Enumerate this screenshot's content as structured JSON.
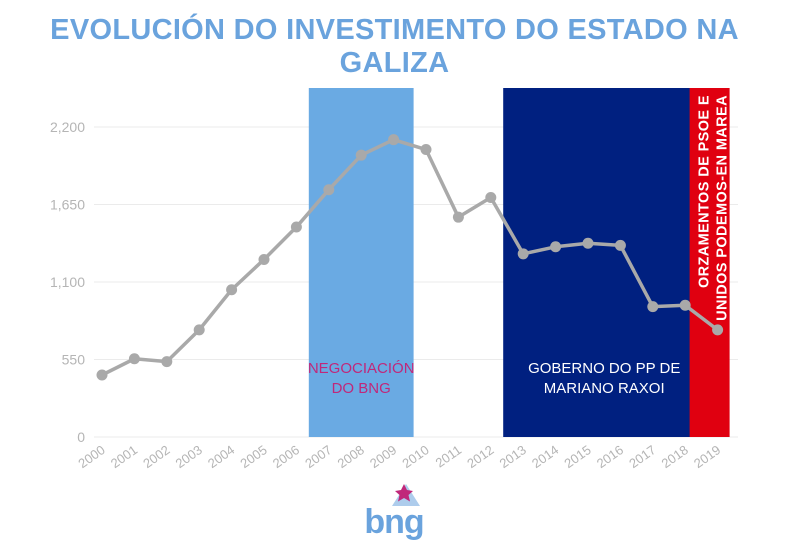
{
  "title": "EVOLUCIÓN DO INVESTIMENTO DO ESTADO NA GALIZA",
  "logo": {
    "text": "bng",
    "icon": "star-mountain-icon",
    "color": "#6aa3dd",
    "star_color": "#c0287a"
  },
  "chart_data": {
    "type": "line",
    "title": "EVOLUCIÓN DO INVESTIMENTO DO ESTADO NA GALIZA",
    "xlabel": "",
    "ylabel": "",
    "x": [
      "2000",
      "2001",
      "2002",
      "2003",
      "2004",
      "2005",
      "2006",
      "2007",
      "2008",
      "2009",
      "2010",
      "2011",
      "2012",
      "2013",
      "2014",
      "2015",
      "2016",
      "2017",
      "2018",
      "2019"
    ],
    "series": [
      {
        "name": "",
        "color": "#a9a9a9",
        "values": [
          440,
          555,
          535,
          760,
          1045,
          1260,
          1490,
          1755,
          2000,
          2110,
          2040,
          1560,
          1700,
          1300,
          1350,
          1375,
          1360,
          925,
          935,
          760
        ]
      }
    ],
    "yticks": [
      "0",
      "550",
      "1,100",
      "1,650",
      "2,200"
    ],
    "ylim": [
      0,
      2200
    ],
    "grid": true,
    "bands": [
      {
        "label_lines": [
          "NEGOCIACIÓN",
          "DO BNG"
        ],
        "from": "2007",
        "to": "2009",
        "color": "#6aaae3",
        "label_color": "#c0287a"
      },
      {
        "label_lines": [
          "GOBERNO DO PP DE",
          "MARIANO RAXOI"
        ],
        "from": "2013",
        "to": "2018",
        "color": "#002080",
        "label_color": "#ffffff"
      },
      {
        "label_lines": [
          "ORZAMENTOS DE PSOE E",
          "UNIDOS PODEMOS-EN MAREA"
        ],
        "from": "2019",
        "to": "2019",
        "color": "#e00010",
        "label_color": "#ffffff",
        "vertical": true
      }
    ]
  }
}
